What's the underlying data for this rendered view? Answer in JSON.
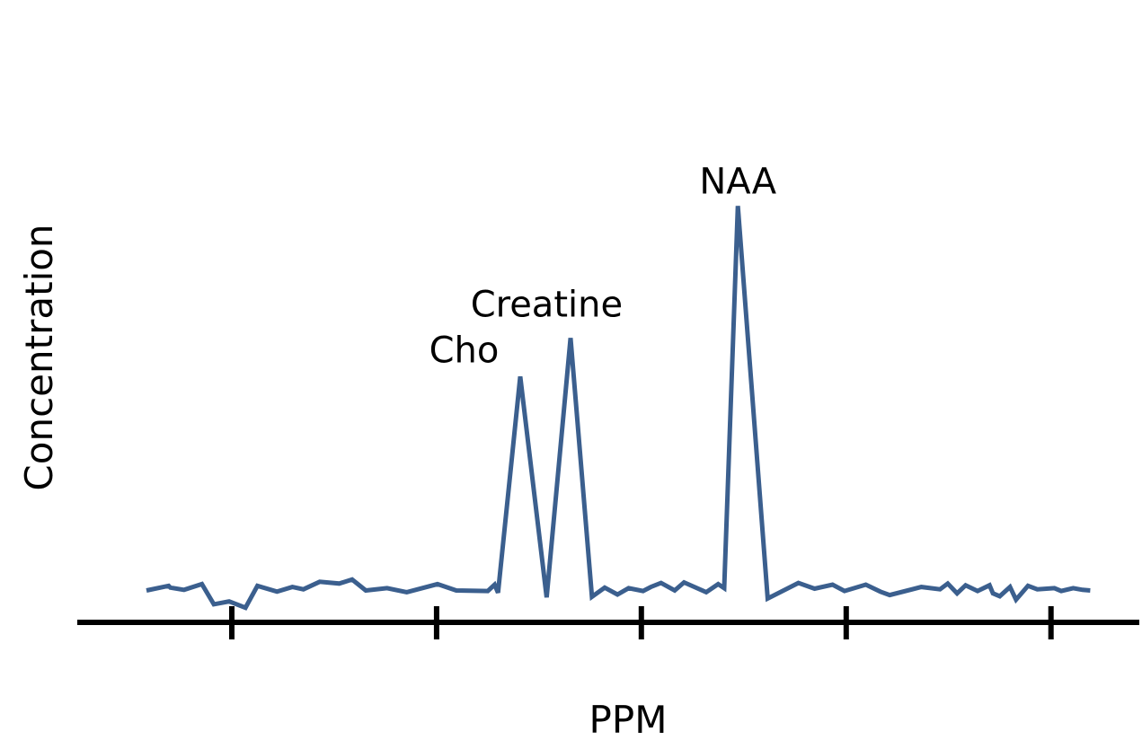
{
  "chart_data": {
    "type": "line",
    "title": "",
    "xlabel": "PPM",
    "ylabel": "Concentration",
    "line_color": "#3B5F8E",
    "axis_color": "#000000",
    "xlim": [
      0,
      100
    ],
    "ylim": [
      0,
      100
    ],
    "grid": false,
    "legend": "none",
    "x_ticks": [
      10,
      34,
      58,
      82,
      106
    ],
    "x": [
      0,
      2.6,
      2.8,
      4.4,
      6.5,
      7.9,
      9.7,
      11.6,
      13.0,
      15.3,
      17.1,
      18.4,
      20.3,
      22.6,
      24.1,
      25.7,
      28.2,
      30.5,
      34.1,
      36.3,
      40.0,
      40.8,
      41.2,
      43.8,
      46.9,
      49.7,
      52.2,
      53.7,
      55.2,
      56.5,
      58.2,
      59.1,
      60.3,
      61.9,
      63.0,
      65.6,
      67.0,
      67.7,
      69.3,
      72.8,
      76.4,
      78.3,
      80.4,
      81.8,
      84.3,
      86.0,
      87.1,
      90.8,
      93.0,
      93.9,
      95.0,
      96.0,
      97.4,
      98.8,
      99.2,
      100.0,
      101.2,
      101.9,
      103.3,
      104.4,
      106.4,
      107.2,
      108.6,
      109.7,
      110.6
    ],
    "y": [
      4.6,
      5.4,
      5.1,
      4.7,
      5.7,
      2.2,
      2.7,
      1.6,
      5.4,
      4.4,
      5.2,
      4.8,
      6.1,
      5.8,
      6.5,
      4.6,
      5.0,
      4.3,
      5.7,
      4.6,
      4.5,
      5.6,
      4.2,
      41.7,
      3.4,
      48.4,
      3.5,
      5.1,
      3.9,
      5.0,
      4.5,
      5.2,
      5.9,
      4.6,
      6.0,
      4.3,
      5.7,
      5.0,
      71.3,
      3.2,
      5.9,
      4.9,
      5.6,
      4.5,
      5.6,
      4.4,
      3.8,
      5.2,
      4.8,
      5.8,
      4.1,
      5.5,
      4.5,
      5.5,
      4.1,
      3.6,
      5.2,
      3.0,
      5.4,
      4.8,
      5.0,
      4.5,
      5.0,
      4.7,
      4.6
    ],
    "annotations": [
      {
        "text": "Cho",
        "x": 40.8,
        "y": 41.7
      },
      {
        "text": "Creatine",
        "x": 46.9,
        "y": 48.4
      },
      {
        "text": "NAA",
        "x": 69.3,
        "y": 71.3
      }
    ]
  }
}
